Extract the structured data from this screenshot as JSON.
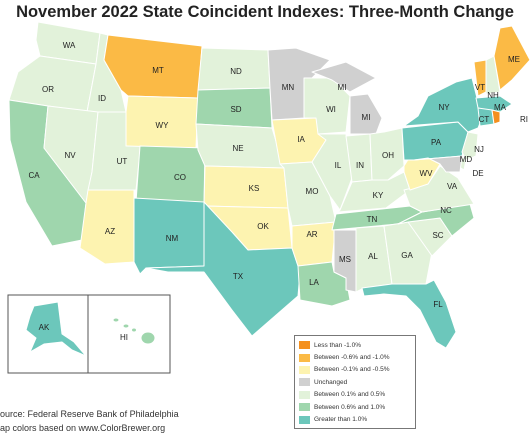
{
  "title": "November 2022 State Coincident Indexes: Three-Month Change",
  "legend": [
    {
      "label": "Less than -1.0%",
      "color": "#f4901e"
    },
    {
      "label": "Between -0.6% and -1.0%",
      "color": "#fbba45"
    },
    {
      "label": "Between -0.1% and -0.5%",
      "color": "#fdf3b0"
    },
    {
      "label": "Unchanged",
      "color": "#d0d0d0"
    },
    {
      "label": "Between 0.1% and 0.5%",
      "color": "#e2f2da"
    },
    {
      "label": "Between 0.6% and 1.0%",
      "color": "#9fd6ad"
    },
    {
      "label": "Greater than 1.0%",
      "color": "#6cc7bb"
    }
  ],
  "states": {
    "WA": "Between 0.1% and 0.5%",
    "OR": "Between 0.1% and 0.5%",
    "CA": "Between 0.6% and 1.0%",
    "ID": "Between 0.1% and 0.5%",
    "NV": "Between 0.1% and 0.5%",
    "AZ": "Between -0.1% and -0.5%",
    "MT": "Between -0.6% and -1.0%",
    "WY": "Between -0.1% and -0.5%",
    "UT": "Between 0.1% and 0.5%",
    "CO": "Between 0.6% and 1.0%",
    "NM": "Greater than 1.0%",
    "ND": "Between 0.1% and 0.5%",
    "SD": "Between 0.6% and 1.0%",
    "NE": "Between 0.1% and 0.5%",
    "KS": "Between -0.1% and -0.5%",
    "OK": "Between -0.1% and -0.5%",
    "TX": "Greater than 1.0%",
    "MN": "Unchanged",
    "IA": "Between -0.1% and -0.5%",
    "MO": "Between 0.1% and 0.5%",
    "AR": "Between -0.1% and -0.5%",
    "LA": "Between 0.6% and 1.0%",
    "WI": "Between 0.1% and 0.5%",
    "MI": "Unchanged",
    "IL": "Between 0.1% and 0.5%",
    "IN": "Between 0.1% and 0.5%",
    "OH": "Between 0.1% and 0.5%",
    "KY": "Between 0.1% and 0.5%",
    "TN": "Between 0.6% and 1.0%",
    "MS": "Unchanged",
    "AL": "Between 0.1% and 0.5%",
    "GA": "Between 0.1% and 0.5%",
    "FL": "Greater than 1.0%",
    "SC": "Between 0.1% and 0.5%",
    "NC": "Between 0.6% and 1.0%",
    "VA": "Between 0.1% and 0.5%",
    "WV": "Between -0.1% and -0.5%",
    "PA": "Greater than 1.0%",
    "NY": "Greater than 1.0%",
    "VT": "Between -0.6% and -1.0%",
    "NH": "Between 0.1% and 0.5%",
    "ME": "Between -0.6% and -1.0%",
    "MA": "Greater than 1.0%",
    "CT": "Greater than 1.0%",
    "RI": "Less than -1.0%",
    "NJ": "Between 0.1% and 0.5%",
    "DE": "Between 0.1% and 0.5%",
    "MD": "Unchanged",
    "AK": "Greater than 1.0%",
    "HI": "Between 0.6% and 1.0%"
  },
  "source_line1": "ource: Federal Reserve Bank of Philadelphia",
  "source_line2": "ap colors based on www.ColorBrewer.org"
}
